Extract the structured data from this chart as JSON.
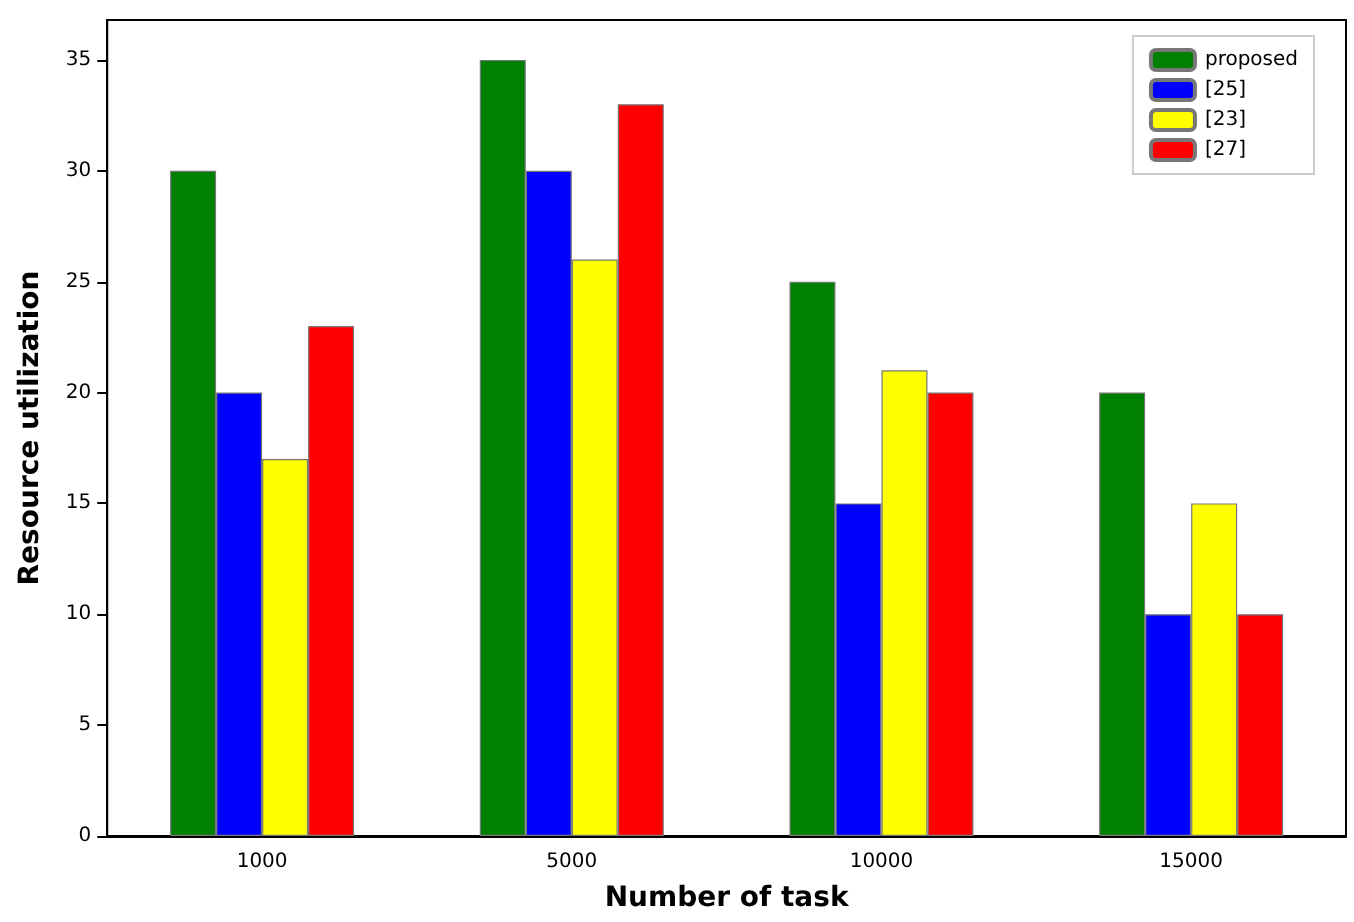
{
  "chart_data": {
    "type": "bar",
    "xlabel": "Number of task",
    "ylabel": "Resource utilization",
    "categories": [
      "1000",
      "5000",
      "10000",
      "15000"
    ],
    "series": [
      {
        "name": "proposed",
        "color": "#008000",
        "values": [
          30,
          35,
          25,
          20
        ]
      },
      {
        "name": "[25]",
        "color": "#0000ff",
        "values": [
          20,
          30,
          15,
          10
        ]
      },
      {
        "name": "[23]",
        "color": "#ffff00",
        "values": [
          17,
          26,
          21,
          15
        ]
      },
      {
        "name": "[27]",
        "color": "#ff0000",
        "values": [
          23,
          33,
          20,
          10
        ]
      }
    ],
    "ylim": [
      0,
      36.8
    ],
    "yticks": [
      0,
      5,
      10,
      15,
      20,
      25,
      30,
      35
    ],
    "grid": false,
    "legend": "top right"
  }
}
